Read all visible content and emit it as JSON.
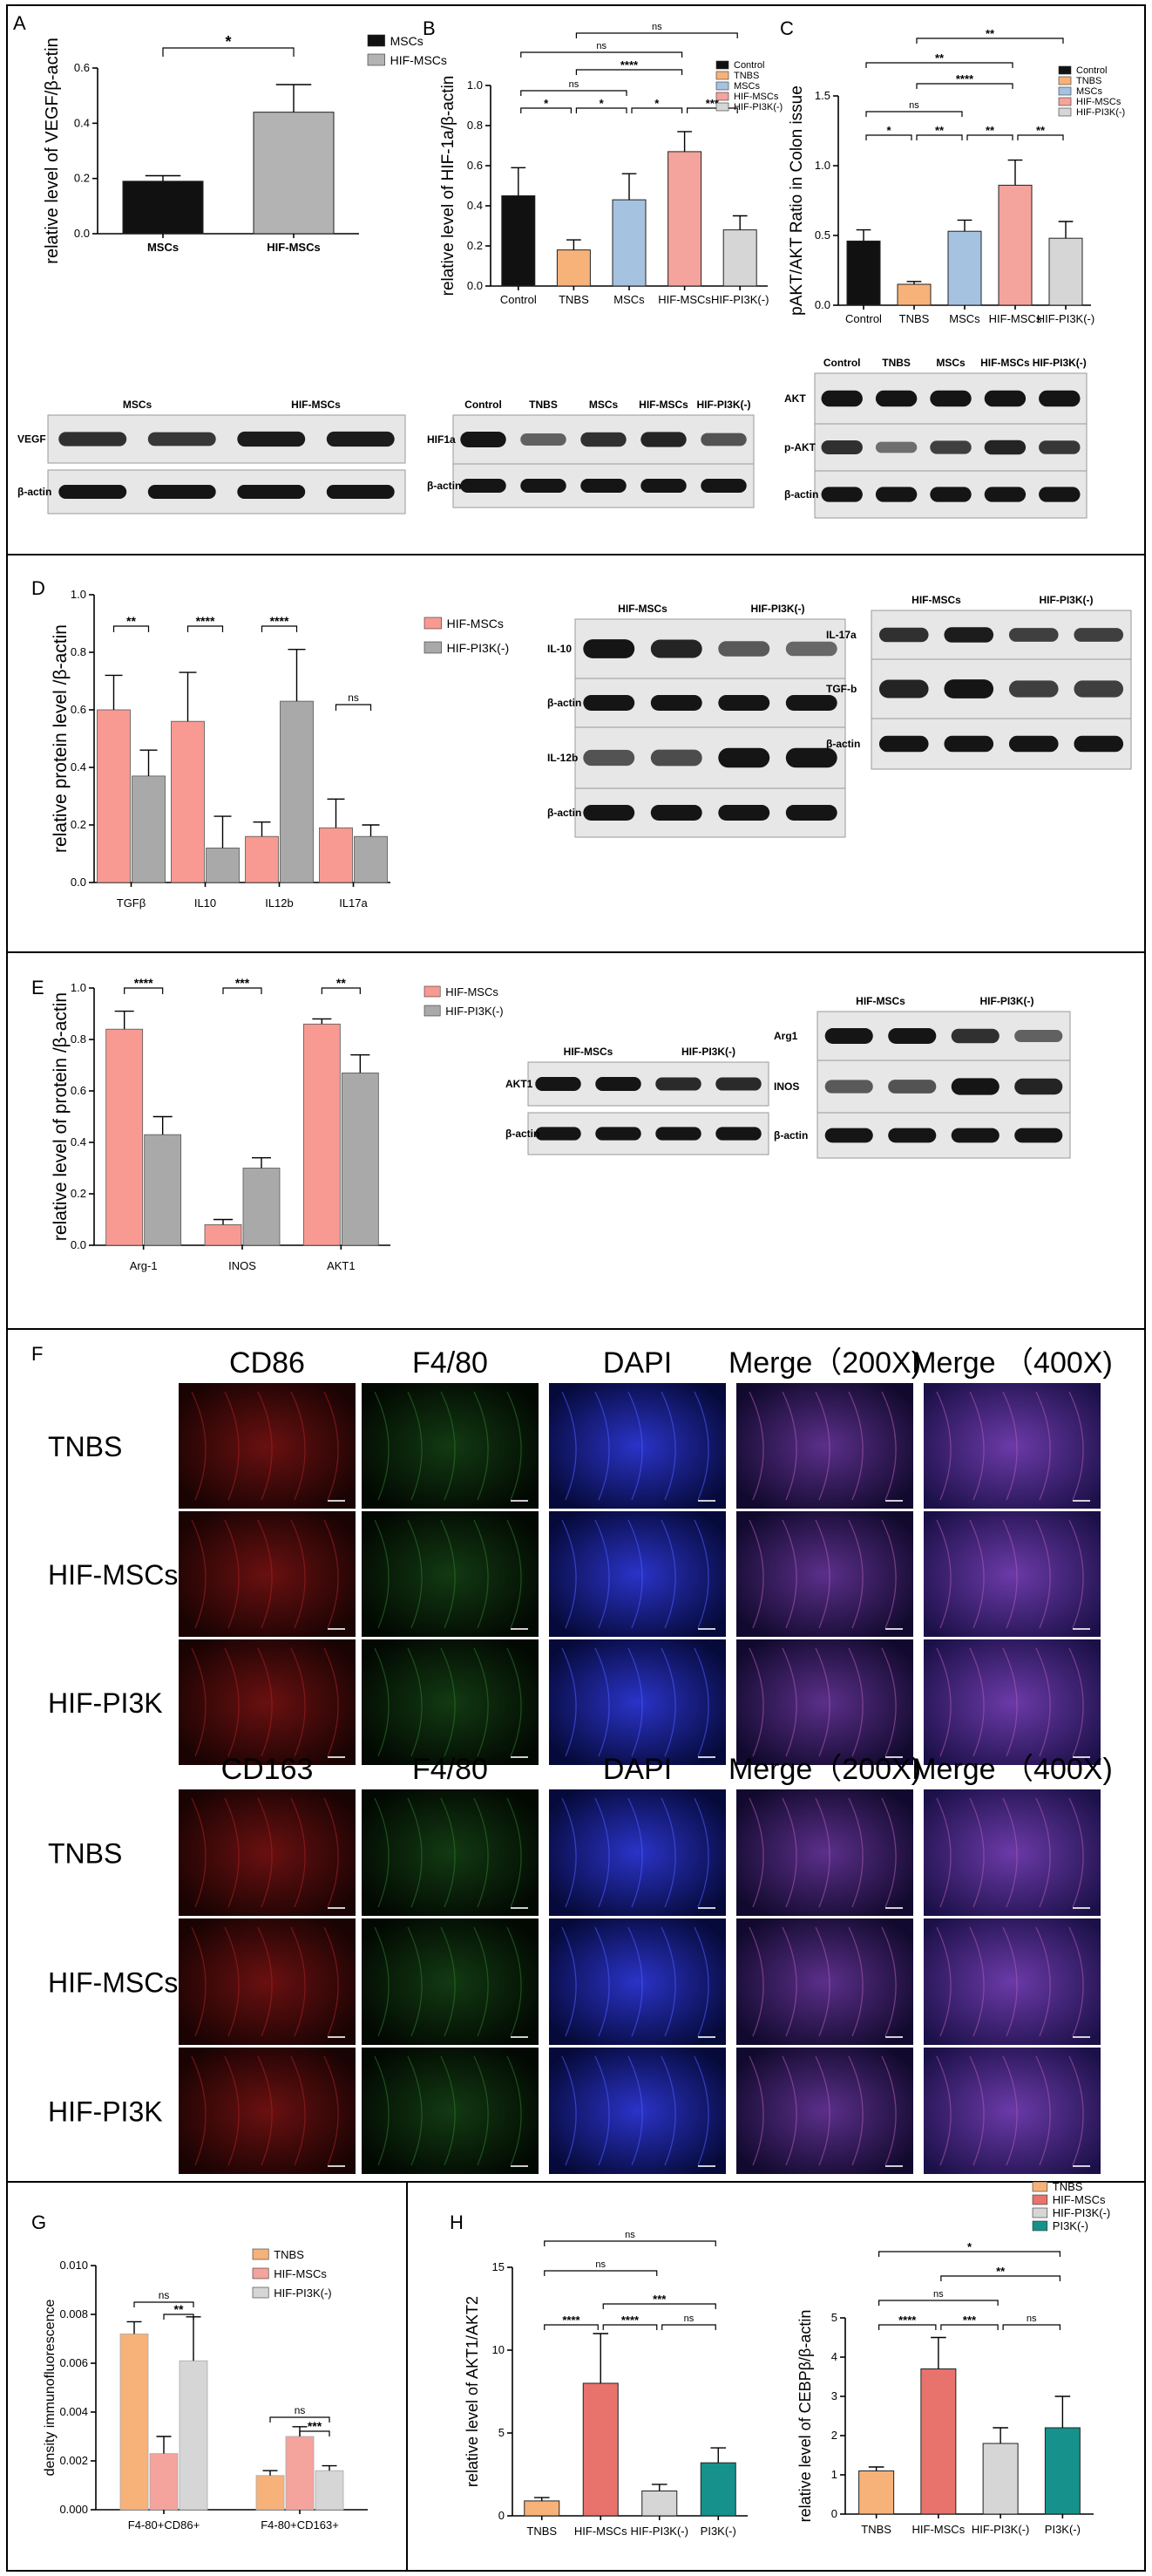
{
  "colors": {
    "black": "#111111",
    "gray": "#b3b3b3",
    "orange": "#f7b27a",
    "blue": "#a5c3e0",
    "salmon": "#f5a39d",
    "lightgray": "#d6d6d6",
    "teal": "#16918c",
    "red": "#e8726c",
    "coral": "#f89a92",
    "midgray": "#a9a9a9"
  },
  "panels": {
    "A": "A",
    "B": "B",
    "C": "C",
    "D": "D",
    "E": "E",
    "F": "F",
    "G": "G",
    "H": "H"
  },
  "chart_data": [
    {
      "id": "A",
      "type": "bar",
      "categories": [
        "MSCs",
        "HIF-MSCs"
      ],
      "values": [
        0.19,
        0.44
      ],
      "errors": [
        0.02,
        0.1
      ],
      "ylabel": "relative level of VEGF/β-actin",
      "ylim": [
        0,
        0.6
      ],
      "yticks": [
        "0.0",
        "0.2",
        "0.4",
        "0.6"
      ],
      "legend": [
        "MSCs",
        "HIF-MSCs"
      ],
      "significance": [
        {
          "a": 0,
          "b": 1,
          "text": "*"
        }
      ]
    },
    {
      "id": "B",
      "type": "bar",
      "categories": [
        "Control",
        "TNBS",
        "MSCs",
        "HIF-MSCs",
        "HIF-PI3K(-)"
      ],
      "values": [
        0.45,
        0.18,
        0.43,
        0.67,
        0.28
      ],
      "errors": [
        0.14,
        0.05,
        0.13,
        0.1,
        0.07
      ],
      "ylabel": "relative level of HIF-1a/β-actin",
      "ylim": [
        0,
        1.0
      ],
      "yticks": [
        "0.0",
        "0.2",
        "0.4",
        "0.6",
        "0.8",
        "1.0"
      ],
      "legend": [
        "Control",
        "TNBS",
        "MSCs",
        "HIF-MSCs",
        "HIF-PI3K(-)"
      ],
      "significance": [
        {
          "a": 0,
          "b": 1,
          "text": "*"
        },
        {
          "a": 1,
          "b": 2,
          "text": "*"
        },
        {
          "a": 2,
          "b": 3,
          "text": "*"
        },
        {
          "a": 3,
          "b": 4,
          "text": "***"
        },
        {
          "a": 0,
          "b": 2,
          "text": "ns"
        },
        {
          "a": 1,
          "b": 3,
          "text": "****"
        },
        {
          "a": 0,
          "b": 3,
          "text": "ns"
        },
        {
          "a": 1,
          "b": 4,
          "text": "ns"
        }
      ]
    },
    {
      "id": "C",
      "type": "bar",
      "categories": [
        "Control",
        "TNBS",
        "MSCs",
        "HIF-MSCs",
        "HIF-PI3K(-)"
      ],
      "values": [
        0.46,
        0.15,
        0.53,
        0.86,
        0.48
      ],
      "errors": [
        0.08,
        0.02,
        0.08,
        0.18,
        0.12
      ],
      "ylabel": "pAKT/AKT Ratio in Colon issue",
      "ylim": [
        0,
        1.5
      ],
      "yticks": [
        "0.0",
        "0.5",
        "1.0",
        "1.5"
      ],
      "legend": [
        "Control",
        "TNBS",
        "MSCs",
        "HIF-MSCs",
        "HIF-PI3K(-)"
      ],
      "significance": [
        {
          "a": 0,
          "b": 1,
          "text": "*"
        },
        {
          "a": 1,
          "b": 2,
          "text": "**"
        },
        {
          "a": 2,
          "b": 3,
          "text": "**"
        },
        {
          "a": 3,
          "b": 4,
          "text": "**"
        },
        {
          "a": 0,
          "b": 2,
          "text": "ns"
        },
        {
          "a": 1,
          "b": 3,
          "text": "****"
        },
        {
          "a": 0,
          "b": 3,
          "text": "**"
        },
        {
          "a": 1,
          "b": 4,
          "text": "**"
        }
      ]
    },
    {
      "id": "D",
      "type": "bar",
      "categories": [
        "TGFβ",
        "IL10",
        "IL12b",
        "IL17a"
      ],
      "series": [
        {
          "name": "HIF-MSCs",
          "values": [
            0.6,
            0.56,
            0.16,
            0.19
          ],
          "errors": [
            0.12,
            0.17,
            0.05,
            0.1
          ]
        },
        {
          "name": "HIF-PI3K(-)",
          "values": [
            0.37,
            0.12,
            0.63,
            0.16
          ],
          "errors": [
            0.09,
            0.11,
            0.18,
            0.04
          ]
        }
      ],
      "ylabel": "relative protein level /β-actin",
      "ylim": [
        0,
        1.0
      ],
      "yticks": [
        "0.0",
        "0.2",
        "0.4",
        "0.6",
        "0.8",
        "1.0"
      ],
      "significance": [
        "**",
        "****",
        "****",
        "ns"
      ]
    },
    {
      "id": "E",
      "type": "bar",
      "categories": [
        "Arg-1",
        "INOS",
        "AKT1"
      ],
      "series": [
        {
          "name": "HIF-MSCs",
          "values": [
            0.84,
            0.08,
            0.86
          ],
          "errors": [
            0.07,
            0.02,
            0.02
          ]
        },
        {
          "name": "HIF-PI3K(-)",
          "values": [
            0.43,
            0.3,
            0.67
          ],
          "errors": [
            0.07,
            0.04,
            0.07
          ]
        }
      ],
      "ylabel": "relative level of protein /β-actin",
      "ylim": [
        0,
        1.0
      ],
      "yticks": [
        "0.0",
        "0.2",
        "0.4",
        "0.6",
        "0.8",
        "1.0"
      ],
      "significance": [
        "****",
        "***",
        "**"
      ]
    },
    {
      "id": "G",
      "type": "bar",
      "categories": [
        "F4-80+CD86+",
        "F4-80+CD163+"
      ],
      "series": [
        {
          "name": "TNBS",
          "values": [
            0.0072,
            0.0014
          ],
          "errors": [
            0.0005,
            0.0002
          ]
        },
        {
          "name": "HIF-MSCs",
          "values": [
            0.0023,
            0.003
          ],
          "errors": [
            0.0007,
            0.0004
          ]
        },
        {
          "name": "HIF-PI3K(-)",
          "values": [
            0.0061,
            0.0016
          ],
          "errors": [
            0.0018,
            0.0002
          ]
        }
      ],
      "ylabel": "density immunofluorescence",
      "ylim": [
        0,
        0.01
      ],
      "yticks": [
        "0.000",
        "0.002",
        "0.004",
        "0.006",
        "0.008",
        "0.010"
      ],
      "significance": [
        [
          "ns",
          "**"
        ],
        [
          "ns",
          "***"
        ]
      ]
    },
    {
      "id": "H1",
      "type": "bar",
      "categories": [
        "TNBS",
        "HIF-MSCs",
        "HIF-PI3K(-)",
        "PI3K(-)"
      ],
      "values": [
        0.9,
        8.0,
        1.5,
        3.2
      ],
      "errors": [
        0.2,
        3.0,
        0.4,
        0.9
      ],
      "ylabel": "relative level of AKT1/AKT2",
      "ylim": [
        0,
        15
      ],
      "yticks": [
        "0",
        "5",
        "10",
        "15"
      ],
      "significance": [
        {
          "a": 0,
          "b": 1,
          "text": "****"
        },
        {
          "a": 1,
          "b": 2,
          "text": "****"
        },
        {
          "a": 2,
          "b": 3,
          "text": "ns"
        },
        {
          "a": 1,
          "b": 3,
          "text": "***"
        },
        {
          "a": 0,
          "b": 2,
          "text": "ns"
        },
        {
          "a": 0,
          "b": 3,
          "text": "ns"
        }
      ]
    },
    {
      "id": "H2",
      "type": "bar",
      "categories": [
        "TNBS",
        "HIF-MSCs",
        "HIF-PI3K(-)",
        "PI3K(-)"
      ],
      "values": [
        1.1,
        3.7,
        1.8,
        2.2
      ],
      "errors": [
        0.1,
        0.8,
        0.4,
        0.8
      ],
      "ylabel": "relative level of CEBPβ/β-actin",
      "ylim": [
        0,
        5
      ],
      "yticks": [
        "0",
        "1",
        "2",
        "3",
        "4",
        "5"
      ],
      "legend": [
        "TNBS",
        "HIF-MSCs",
        "HIF-PI3K(-)",
        "PI3K(-)"
      ],
      "significance": [
        {
          "a": 0,
          "b": 1,
          "text": "****"
        },
        {
          "a": 1,
          "b": 2,
          "text": "***"
        },
        {
          "a": 2,
          "b": 3,
          "text": "ns"
        },
        {
          "a": 0,
          "b": 2,
          "text": "ns"
        },
        {
          "a": 1,
          "b": 3,
          "text": "**"
        },
        {
          "a": 0,
          "b": 3,
          "text": "*"
        }
      ]
    }
  ],
  "blots": {
    "A": {
      "groups": [
        "MSCs",
        "HIF-MSCs"
      ],
      "rows": [
        "VEGF",
        "β-actin"
      ]
    },
    "B": {
      "lanes": [
        "Control",
        "TNBS",
        "MSCs",
        "HIF-MSCs",
        "HIF-PI3K(-)"
      ],
      "rows": [
        "HIF1a",
        "β-actin"
      ]
    },
    "C": {
      "lanes": [
        "Control",
        "TNBS",
        "MSCs",
        "HIF-MSCs",
        "HIF-PI3K(-)"
      ],
      "rows": [
        "AKT",
        "p-AKT",
        "β-actin"
      ]
    },
    "D1": {
      "groups": [
        "HIF-MSCs",
        "HIF-PI3K(-)"
      ],
      "rows": [
        "IL-10",
        "β-actin",
        "IL-12b",
        "β-actin"
      ]
    },
    "D2": {
      "groups": [
        "HIF-MSCs",
        "HIF-PI3K(-)"
      ],
      "rows": [
        "IL-17a",
        "TGF-b",
        "β-actin"
      ]
    },
    "E1": {
      "groups": [
        "HIF-MSCs",
        "HIF-PI3K(-)"
      ],
      "rows": [
        "AKT1",
        "β-actin"
      ]
    },
    "E2": {
      "groups": [
        "HIF-MSCs",
        "HIF-PI3K(-)"
      ],
      "rows": [
        "Arg1",
        "INOS",
        "β-actin"
      ]
    }
  },
  "panelF": {
    "top_headers": [
      "CD86",
      "F4/80",
      "DAPI",
      "Merge（200X)",
      "Merge （400X)"
    ],
    "bottom_headers": [
      "CD163",
      "F4/80",
      "DAPI",
      "Merge（200X)",
      "Merge （400X)"
    ],
    "rows": [
      "TNBS",
      "HIF-MSCs",
      "HIF-PI3K（-)"
    ]
  }
}
